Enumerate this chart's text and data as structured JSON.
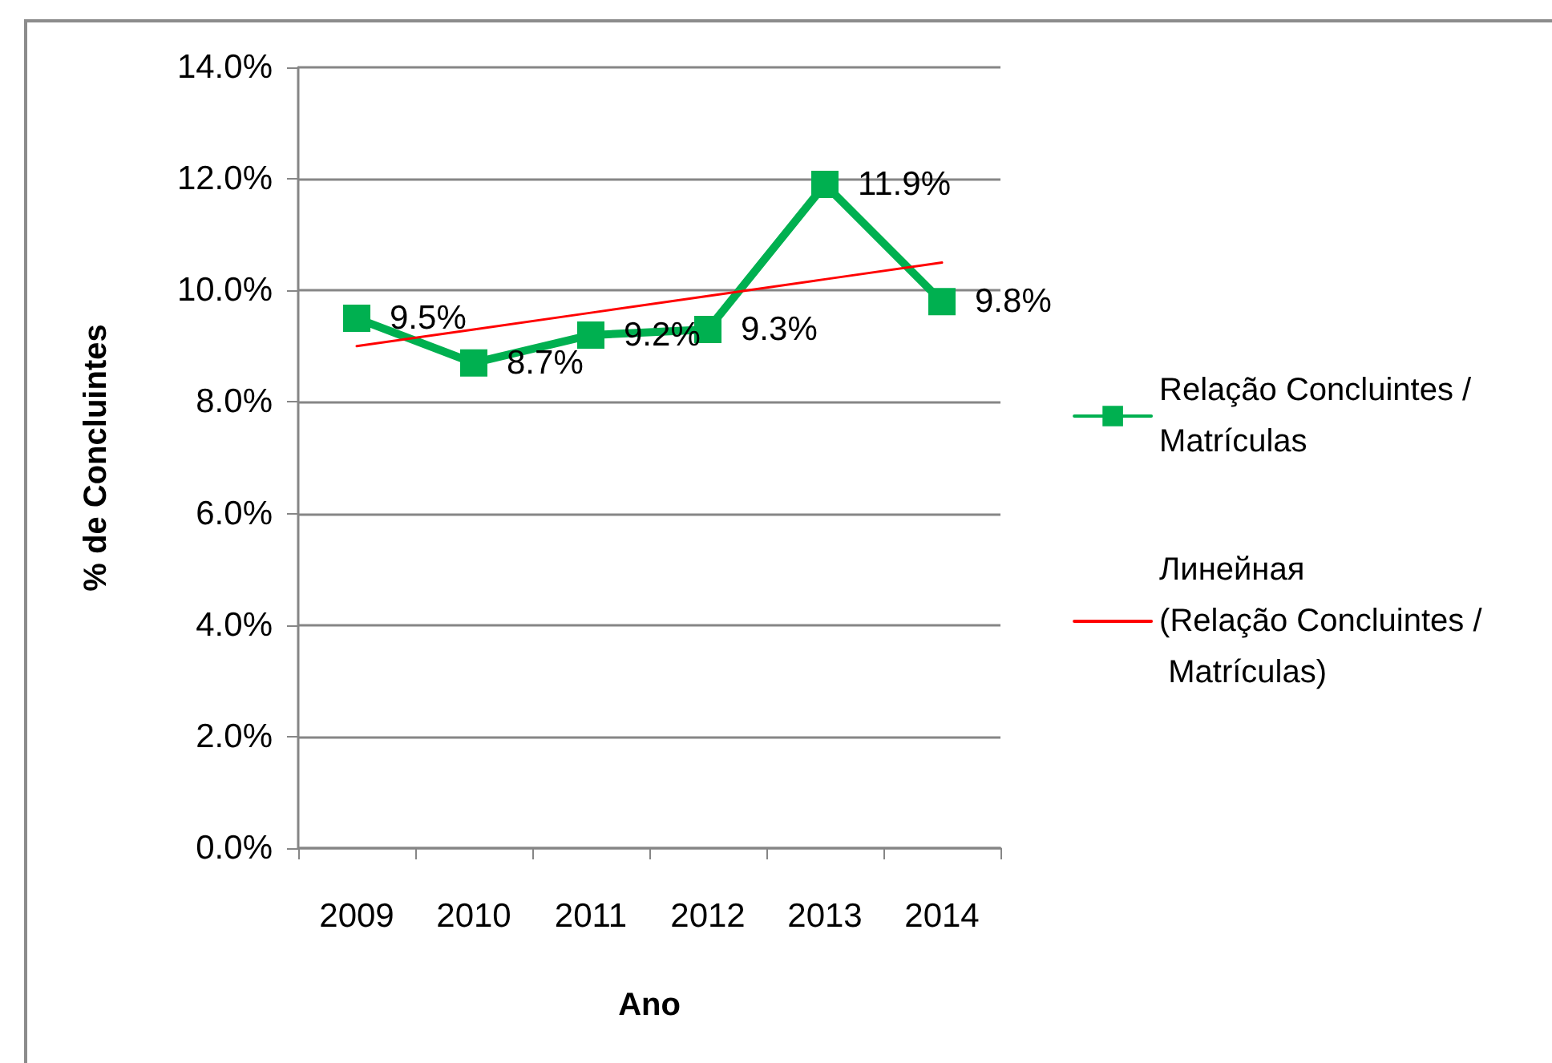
{
  "chart_data": {
    "type": "line",
    "xlabel": "Ano",
    "ylabel": "% de Concluintes",
    "categories": [
      "2009",
      "2010",
      "2011",
      "2012",
      "2013",
      "2014"
    ],
    "ylim": [
      0,
      14
    ],
    "yticks": [
      {
        "value": 0,
        "label": "0.0%"
      },
      {
        "value": 2,
        "label": "2.0%"
      },
      {
        "value": 4,
        "label": "4.0%"
      },
      {
        "value": 6,
        "label": "6.0%"
      },
      {
        "value": 8,
        "label": "8.0%"
      },
      {
        "value": 10,
        "label": "10.0%"
      },
      {
        "value": 12,
        "label": "12.0%"
      },
      {
        "value": 14,
        "label": "14.0%"
      }
    ],
    "grid": "y",
    "legend": "right",
    "series": [
      {
        "name": "Relação Concluintes / Matrículas",
        "color": "#00b050",
        "marker": "square",
        "values": [
          9.5,
          8.7,
          9.2,
          9.3,
          11.9,
          9.8
        ],
        "value_labels": [
          "9.5%",
          "8.7%",
          "9.2%",
          "9.3%",
          "11.9%",
          "9.8%"
        ]
      },
      {
        "name": "Линейная (Relação Concluintes / Matrículas)",
        "type": "line",
        "color": "#ff0000",
        "marker": "none",
        "values": [
          9.0,
          9.3,
          9.6,
          9.9,
          10.2,
          10.5
        ]
      }
    ]
  }
}
